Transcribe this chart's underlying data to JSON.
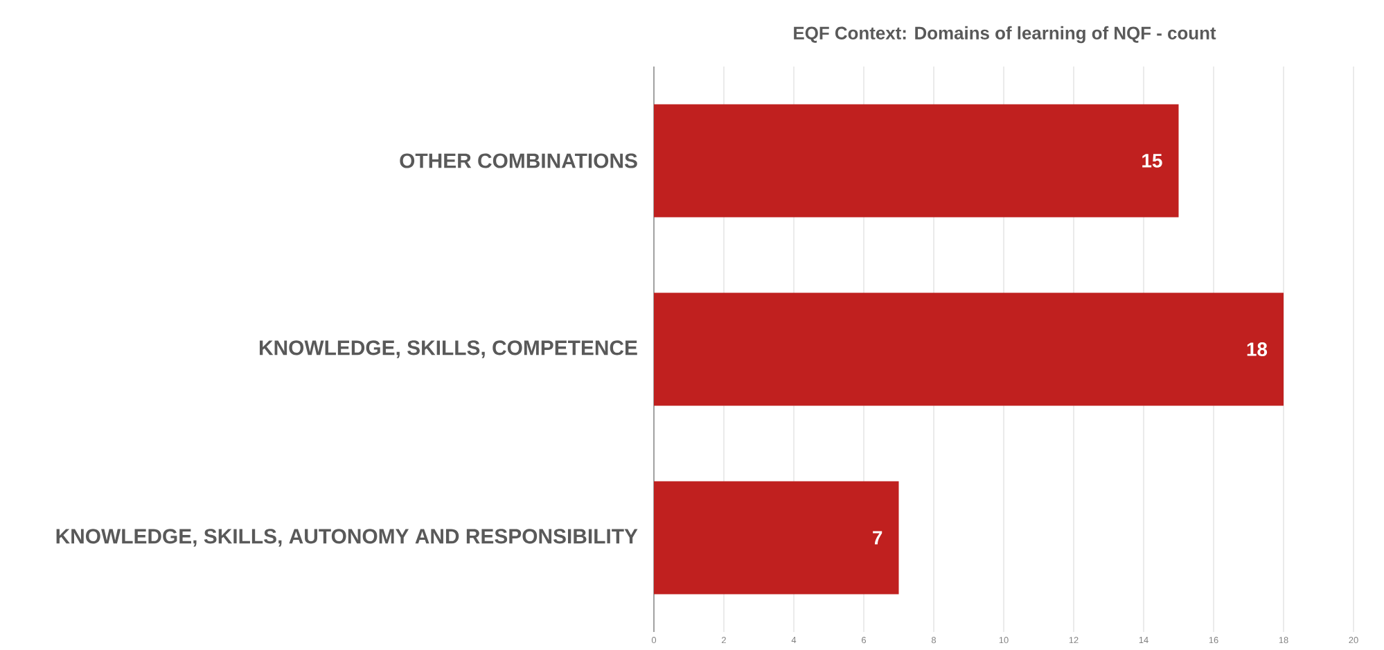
{
  "chart_data": {
    "type": "bar",
    "orientation": "horizontal",
    "title": "EQF Context: Domains of learning of NQF - count",
    "categories": [
      "OTHER COMBINATIONS",
      "KNOWLEDGE, SKILLS, COMPETENCE",
      "KNOWLEDGE, SKILLS, AUTONOMY AND RESPONSIBILITY"
    ],
    "values": [
      15,
      18,
      7
    ],
    "color": "#c0201f",
    "data_labels": true,
    "xlim": [
      0,
      20
    ],
    "xticks": [
      0,
      2,
      4,
      6,
      8,
      10,
      12,
      14,
      16,
      18,
      20
    ],
    "grid": "x"
  }
}
